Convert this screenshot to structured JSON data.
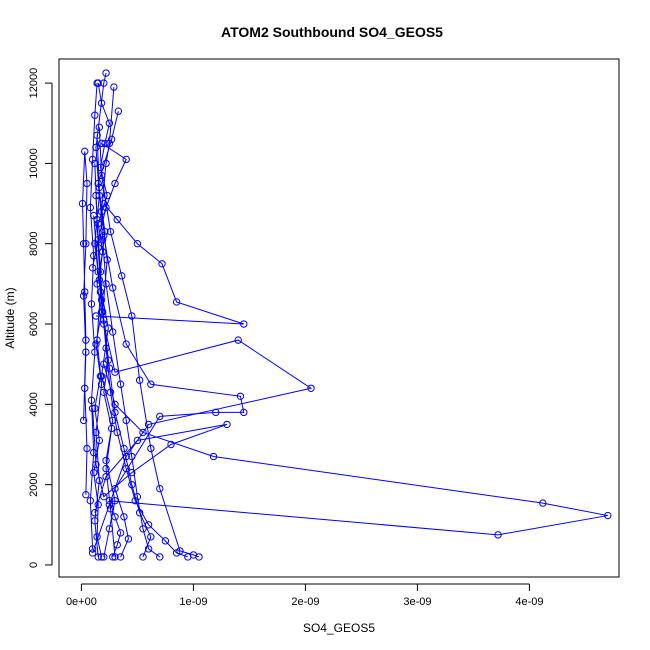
{
  "chart_data": {
    "type": "line",
    "title": "ATOM2 Southbound SO4_GEOS5",
    "xlabel": "SO4_GEOS5",
    "ylabel": "Altitude (m)",
    "xlim": [
      -2e-10,
      4.8e-09
    ],
    "ylim": [
      -300,
      12600
    ],
    "x_ticks": [
      0,
      1e-09,
      2e-09,
      3e-09,
      4e-09
    ],
    "x_tick_labels": [
      "0e+00",
      "1e-09",
      "2e-09",
      "3e-09",
      "4e-09"
    ],
    "y_ticks": [
      0,
      2000,
      4000,
      6000,
      8000,
      10000,
      12000
    ],
    "y_tick_labels": [
      "0",
      "2000",
      "4000",
      "6000",
      "8000",
      "10000",
      "12000"
    ],
    "grid": false,
    "legend": "none",
    "marker": "open-circle",
    "color": "#0000ff",
    "series": [
      {
        "points": [
          [
            1.5e-10,
            200
          ],
          [
            1.2e-10,
            1100
          ],
          [
            1.6e-10,
            2100
          ],
          [
            1.3e-10,
            3300
          ],
          [
            1.8e-10,
            4500
          ],
          [
            1.4e-10,
            5600
          ],
          [
            1.7e-10,
            6800
          ],
          [
            1.2e-10,
            8000
          ],
          [
            1.6e-10,
            9200
          ],
          [
            1.3e-10,
            10400
          ],
          [
            2e-10,
            12000
          ],
          [
            2.2e-10,
            12250
          ]
        ]
      },
      {
        "points": [
          [
            2e-10,
            200
          ],
          [
            2.5e-10,
            900
          ],
          [
            3e-10,
            1600
          ],
          [
            2.2e-10,
            2600
          ],
          [
            2.8e-10,
            3600
          ],
          [
            1.8e-10,
            4700
          ],
          [
            2.4e-10,
            5900
          ],
          [
            1.6e-10,
            7100
          ],
          [
            2.1e-10,
            8300
          ],
          [
            1.5e-10,
            9500
          ],
          [
            2.7e-10,
            10600
          ],
          [
            3.3e-10,
            11300
          ]
        ]
      },
      {
        "points": [
          [
            5.5e-10,
            200
          ],
          [
            6.2e-10,
            700
          ],
          [
            5.2e-10,
            1300
          ],
          [
            4.5e-10,
            2000
          ],
          [
            3.8e-10,
            2900
          ],
          [
            3e-10,
            3800
          ],
          [
            2.5e-10,
            4900
          ],
          [
            2e-10,
            6100
          ],
          [
            1.7e-10,
            7300
          ],
          [
            1.4e-10,
            8600
          ],
          [
            1.2e-10,
            10000
          ]
        ]
      },
      {
        "points": [
          [
            9.5e-10,
            200
          ],
          [
            8.5e-10,
            300
          ],
          [
            7.5e-10,
            600
          ],
          [
            6e-10,
            1000
          ],
          [
            4.8e-10,
            1600
          ],
          [
            4e-10,
            2400
          ],
          [
            3.2e-10,
            3300
          ],
          [
            2.6e-10,
            4300
          ],
          [
            2.2e-10,
            5400
          ],
          [
            1.8e-10,
            6600
          ],
          [
            1.5e-10,
            7900
          ],
          [
            1.3e-10,
            9200
          ]
        ]
      },
      {
        "points": [
          [
            3.5e-10,
            200
          ],
          [
            4.2e-10,
            650
          ],
          [
            3.8e-10,
            1200
          ],
          [
            3e-10,
            1900
          ],
          [
            7e-10,
            3700
          ],
          [
            1.2e-09,
            3800
          ],
          [
            1.45e-09,
            3800
          ],
          [
            1.42e-09,
            4200
          ],
          [
            6.2e-10,
            4500
          ],
          [
            4e-10,
            5500
          ],
          [
            2.8e-10,
            6900
          ],
          [
            2e-10,
            8200
          ]
        ]
      },
      {
        "points": [
          [
            2.8e-10,
            200
          ],
          [
            3.2e-10,
            500
          ],
          [
            3.5e-10,
            800
          ],
          [
            3e-10,
            1200
          ],
          [
            2.5e-10,
            1600
          ],
          [
            3.72e-09,
            750
          ],
          [
            4.7e-09,
            1230
          ],
          [
            4.12e-09,
            1540
          ],
          [
            1.18e-09,
            2700
          ],
          [
            5.5e-10,
            3300
          ],
          [
            3e-10,
            4000
          ],
          [
            2e-10,
            5000
          ]
        ]
      },
      {
        "points": [
          [
            1e-10,
            300
          ],
          [
            2.5e-10,
            1500
          ],
          [
            4e-10,
            2700
          ],
          [
            6e-10,
            3500
          ],
          [
            2.05e-09,
            4400
          ],
          [
            1.4e-09,
            5600
          ],
          [
            3e-10,
            4800
          ],
          [
            2e-10,
            6000
          ],
          [
            1.5e-10,
            7300
          ],
          [
            1.1e-10,
            8700
          ]
        ]
      },
      {
        "points": [
          [
            1.2e-10,
            1300
          ],
          [
            2.2e-10,
            2200
          ],
          [
            5e-10,
            3100
          ],
          [
            1.3e-09,
            3500
          ],
          [
            8e-10,
            3000
          ],
          [
            4.5e-10,
            2300
          ],
          [
            2e-10,
            1700
          ],
          [
            1.3e-10,
            2500
          ],
          [
            1e-10,
            3900
          ]
        ]
      },
      {
        "points": [
          [
            1.3e-10,
            6200
          ],
          [
            1.45e-09,
            6000
          ],
          [
            8.5e-10,
            6550
          ],
          [
            7.2e-10,
            7500
          ],
          [
            5e-10,
            8000
          ],
          [
            3.2e-10,
            8600
          ],
          [
            2e-10,
            9000
          ]
        ]
      },
      {
        "points": [
          [
            1.8e-10,
            10500
          ],
          [
            4e-10,
            10100
          ],
          [
            3e-10,
            9500
          ],
          [
            2.2e-10,
            8900
          ],
          [
            1.5e-10,
            8100
          ],
          [
            1e-10,
            7400
          ]
        ]
      },
      {
        "points": [
          [
            2e-11,
            3600
          ],
          [
            4e-11,
            5600
          ],
          [
            3e-11,
            6800
          ],
          [
            2e-11,
            8000
          ],
          [
            1e-11,
            9000
          ],
          [
            3e-11,
            10300
          ],
          [
            5e-11,
            9500
          ],
          [
            4e-11,
            8000
          ],
          [
            2e-11,
            6700
          ],
          [
            4e-11,
            5300
          ],
          [
            3e-11,
            4400
          ],
          [
            5e-11,
            2900
          ],
          [
            4e-11,
            1750
          ]
        ]
      },
      {
        "points": [
          [
            1e-10,
            400
          ],
          [
            8e-11,
            1600
          ],
          [
            1.1e-10,
            2800
          ],
          [
            9e-11,
            4100
          ],
          [
            1.2e-10,
            5300
          ],
          [
            9e-11,
            6500
          ],
          [
            1.1e-10,
            7700
          ],
          [
            8e-11,
            8900
          ],
          [
            1e-10,
            10100
          ],
          [
            1.2e-10,
            11200
          ],
          [
            1.4e-10,
            12000
          ]
        ]
      },
      {
        "points": [
          [
            3e-10,
            200
          ],
          [
            2.6e-10,
            1400
          ],
          [
            2.2e-10,
            2400
          ],
          [
            2.7e-10,
            3400
          ],
          [
            2e-10,
            4300
          ],
          [
            2.4e-10,
            5100
          ],
          [
            1.9e-10,
            6300
          ],
          [
            2.3e-10,
            7600
          ],
          [
            1.8e-10,
            8800
          ],
          [
            2.2e-10,
            10000
          ],
          [
            2.5e-10,
            10500
          ],
          [
            2.9e-10,
            11900
          ]
        ]
      },
      {
        "points": [
          [
            7e-10,
            200
          ],
          [
            6e-10,
            400
          ],
          [
            5.5e-10,
            900
          ],
          [
            5e-10,
            1700
          ],
          [
            4.5e-10,
            2700
          ],
          [
            4e-10,
            3600
          ],
          [
            3.5e-10,
            4500
          ],
          [
            2.8e-10,
            5800
          ],
          [
            2.2e-10,
            7000
          ],
          [
            1.9e-10,
            8100
          ],
          [
            1.6e-10,
            9400
          ],
          [
            1.4e-10,
            10700
          ]
        ]
      },
      {
        "points": [
          [
            1.05e-09,
            200
          ],
          [
            1e-09,
            250
          ],
          [
            8.8e-10,
            350
          ],
          [
            7e-10,
            1900
          ],
          [
            6.2e-10,
            2900
          ],
          [
            5.2e-10,
            4600
          ],
          [
            4.5e-10,
            6200
          ],
          [
            3.6e-10,
            7200
          ],
          [
            2.6e-10,
            8300
          ],
          [
            1.8e-10,
            9700
          ],
          [
            1.6e-10,
            10900
          ]
        ]
      },
      {
        "points": [
          [
            1.5e-10,
            12000
          ],
          [
            1.8e-10,
            11500
          ],
          [
            2.5e-10,
            11000
          ],
          [
            2.1e-10,
            10500
          ],
          [
            1.7e-10,
            9900
          ],
          [
            2.3e-10,
            9200
          ],
          [
            1.5e-10,
            8500
          ],
          [
            1.9e-10,
            7800
          ],
          [
            1.4e-10,
            7000
          ],
          [
            1.8e-10,
            6300
          ],
          [
            1.3e-10,
            5500
          ],
          [
            1.7e-10,
            4700
          ],
          [
            1.2e-10,
            3900
          ],
          [
            1.6e-10,
            3100
          ],
          [
            1.1e-10,
            2300
          ],
          [
            1.5e-10,
            1500
          ],
          [
            1.4e-10,
            700
          ],
          [
            1.8e-10,
            200
          ]
        ]
      }
    ]
  }
}
